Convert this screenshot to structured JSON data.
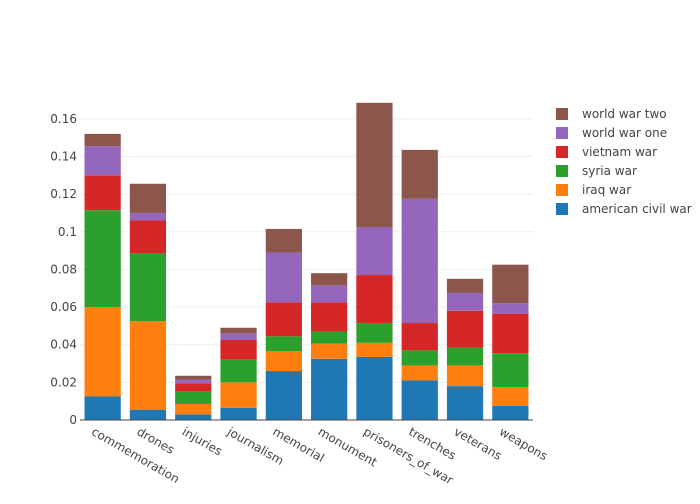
{
  "chart_data": {
    "type": "bar",
    "stacked": true,
    "title": "",
    "xlabel": "",
    "ylabel": "",
    "ylim": [
      0,
      0.17
    ],
    "yticks": [
      "0",
      "0.02",
      "0.04",
      "0.06",
      "0.08",
      "0.1",
      "0.12",
      "0.14",
      "0.16"
    ],
    "ytick_values": [
      0,
      0.02,
      0.04,
      0.06,
      0.08,
      0.1,
      0.12,
      0.14,
      0.16
    ],
    "grid": true,
    "legend_position": "top-right",
    "categories": [
      "commemoration",
      "drones",
      "injuries",
      "journalism",
      "memorial",
      "monument",
      "prisoners_of_war",
      "trenches",
      "veterans",
      "weapons"
    ],
    "series": [
      {
        "name": "american civil war",
        "color": "#1f77b4",
        "values": [
          0.0125,
          0.0055,
          0.003,
          0.0065,
          0.026,
          0.0325,
          0.0335,
          0.021,
          0.018,
          0.0075
        ]
      },
      {
        "name": "iraq war",
        "color": "#ff7f0e",
        "values": [
          0.0475,
          0.047,
          0.0055,
          0.0135,
          0.0105,
          0.008,
          0.0075,
          0.008,
          0.011,
          0.01
        ]
      },
      {
        "name": "syria war",
        "color": "#2ca02c",
        "values": [
          0.0515,
          0.036,
          0.0065,
          0.012,
          0.008,
          0.0065,
          0.0105,
          0.008,
          0.0095,
          0.018
        ]
      },
      {
        "name": "vietnam war",
        "color": "#d62728",
        "values": [
          0.0185,
          0.0175,
          0.0045,
          0.0105,
          0.018,
          0.0155,
          0.0255,
          0.0145,
          0.0195,
          0.021
        ]
      },
      {
        "name": "world war one",
        "color": "#9467bd",
        "values": [
          0.0155,
          0.004,
          0.002,
          0.0035,
          0.0265,
          0.009,
          0.0255,
          0.066,
          0.0095,
          0.0055
        ]
      },
      {
        "name": "world war two",
        "color": "#8c564b",
        "values": [
          0.0065,
          0.0155,
          0.002,
          0.003,
          0.0125,
          0.0065,
          0.066,
          0.026,
          0.0075,
          0.0205
        ]
      }
    ]
  }
}
